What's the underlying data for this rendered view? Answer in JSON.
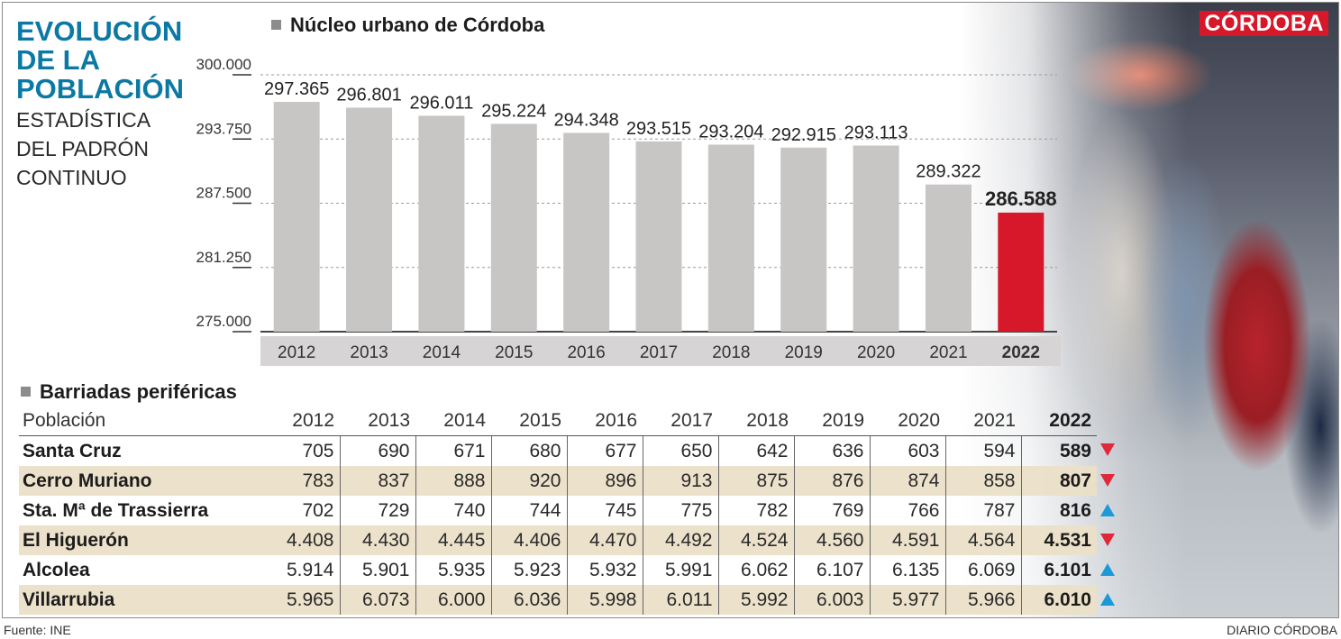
{
  "header": {
    "title_lines": [
      "EVOLUCIÓN",
      "DE LA",
      "POBLACIÓN"
    ],
    "subtitle_lines": [
      "ESTADÍSTICA",
      "DEL PADRÓN",
      "CONTINUO"
    ],
    "logo": "CÓRDOBA"
  },
  "colors": {
    "title": "#0b79a3",
    "bar": "#c8c5c5",
    "bar_highlight": "#d7182a",
    "row_alt": "#ebdfc7",
    "arrow_down": "#e0283a",
    "arrow_up": "#1a9ad6",
    "logo_bg": "#d7182a"
  },
  "chart_data": {
    "type": "bar",
    "title": "Núcleo urbano de Córdoba",
    "xlabel": "",
    "ylabel": "",
    "categories": [
      "2012",
      "2013",
      "2014",
      "2015",
      "2016",
      "2017",
      "2018",
      "2019",
      "2020",
      "2021",
      "2022"
    ],
    "values": [
      297365,
      296801,
      296011,
      295224,
      294348,
      293515,
      293204,
      292915,
      293113,
      289322,
      286588
    ],
    "value_labels": [
      "297.365",
      "296.801",
      "296.011",
      "295.224",
      "294.348",
      "293.515",
      "293.204",
      "292.915",
      "293.113",
      "289.322",
      "286.588"
    ],
    "highlight_index": 10,
    "ylim": [
      275000,
      300000
    ],
    "yticks": [
      275000,
      281250,
      287500,
      293750,
      300000
    ],
    "ytick_labels": [
      "275.000",
      "281.250",
      "287.500",
      "293.750",
      "300.000"
    ],
    "grid": true,
    "legend": "none"
  },
  "table": {
    "title": "Barriadas periféricas",
    "columns": [
      "Población",
      "2012",
      "2013",
      "2014",
      "2015",
      "2016",
      "2017",
      "2018",
      "2019",
      "2020",
      "2021",
      "2022"
    ],
    "rows": [
      {
        "name": "Santa Cruz",
        "values": [
          "705",
          "690",
          "671",
          "680",
          "677",
          "650",
          "642",
          "636",
          "603",
          "594",
          "589"
        ],
        "trend": "down"
      },
      {
        "name": "Cerro Muriano",
        "values": [
          "783",
          "837",
          "888",
          "920",
          "896",
          "913",
          "875",
          "876",
          "874",
          "858",
          "807"
        ],
        "trend": "down"
      },
      {
        "name": "Sta. Mª de Trassierra",
        "values": [
          "702",
          "729",
          "740",
          "744",
          "745",
          "775",
          "782",
          "769",
          "766",
          "787",
          "816"
        ],
        "trend": "up"
      },
      {
        "name": "El Higuerón",
        "values": [
          "4.408",
          "4.430",
          "4.445",
          "4.406",
          "4.470",
          "4.492",
          "4.524",
          "4.560",
          "4.591",
          "4.564",
          "4.531"
        ],
        "trend": "down"
      },
      {
        "name": "Alcolea",
        "values": [
          "5.914",
          "5.901",
          "5.935",
          "5.923",
          "5.932",
          "5.991",
          "6.062",
          "6.107",
          "6.135",
          "6.069",
          "6.101"
        ],
        "trend": "up"
      },
      {
        "name": "Villarrubia",
        "values": [
          "5.965",
          "6.073",
          "6.000",
          "6.036",
          "5.998",
          "6.011",
          "5.992",
          "6.003",
          "5.977",
          "5.966",
          "6.010"
        ],
        "trend": "up"
      }
    ]
  },
  "footer": {
    "source": "Fuente: INE",
    "credit": "DIARIO CÓRDOBA"
  }
}
